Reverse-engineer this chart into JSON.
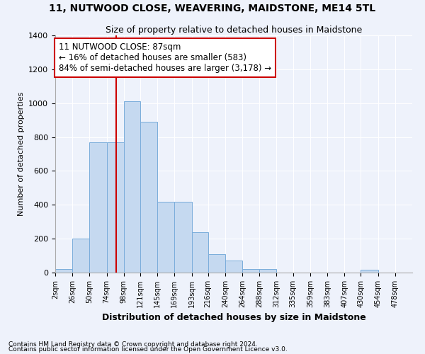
{
  "title": "11, NUTWOOD CLOSE, WEAVERING, MAIDSTONE, ME14 5TL",
  "subtitle": "Size of property relative to detached houses in Maidstone",
  "xlabel": "Distribution of detached houses by size in Maidstone",
  "ylabel": "Number of detached properties",
  "bin_labels": [
    "2sqm",
    "26sqm",
    "50sqm",
    "74sqm",
    "98sqm",
    "121sqm",
    "145sqm",
    "169sqm",
    "193sqm",
    "216sqm",
    "240sqm",
    "264sqm",
    "288sqm",
    "312sqm",
    "335sqm",
    "359sqm",
    "383sqm",
    "407sqm",
    "430sqm",
    "454sqm",
    "478sqm"
  ],
  "bar_heights": [
    20,
    200,
    770,
    770,
    1010,
    890,
    420,
    420,
    237,
    110,
    70,
    20,
    20,
    0,
    0,
    0,
    0,
    0,
    15,
    0,
    0
  ],
  "bar_color": "#c5d9f0",
  "bar_edge_color": "#7aaddb",
  "property_line_x": 87,
  "property_line_color": "#cc0000",
  "annotation_text": "11 NUTWOOD CLOSE: 87sqm\n← 16% of detached houses are smaller (583)\n84% of semi-detached houses are larger (3,178) →",
  "annotation_box_color": "#ffffff",
  "annotation_box_edge_color": "#cc0000",
  "ylim": [
    0,
    1400
  ],
  "yticks": [
    0,
    200,
    400,
    600,
    800,
    1000,
    1200,
    1400
  ],
  "bin_edges": [
    2,
    26,
    50,
    74,
    98,
    121,
    145,
    169,
    193,
    216,
    240,
    264,
    288,
    312,
    335,
    359,
    383,
    407,
    430,
    454,
    478,
    502
  ],
  "footer1": "Contains HM Land Registry data © Crown copyright and database right 2024.",
  "footer2": "Contains public sector information licensed under the Open Government Licence v3.0.",
  "bg_color": "#eef2fb",
  "plot_bg_color": "#eef2fb"
}
